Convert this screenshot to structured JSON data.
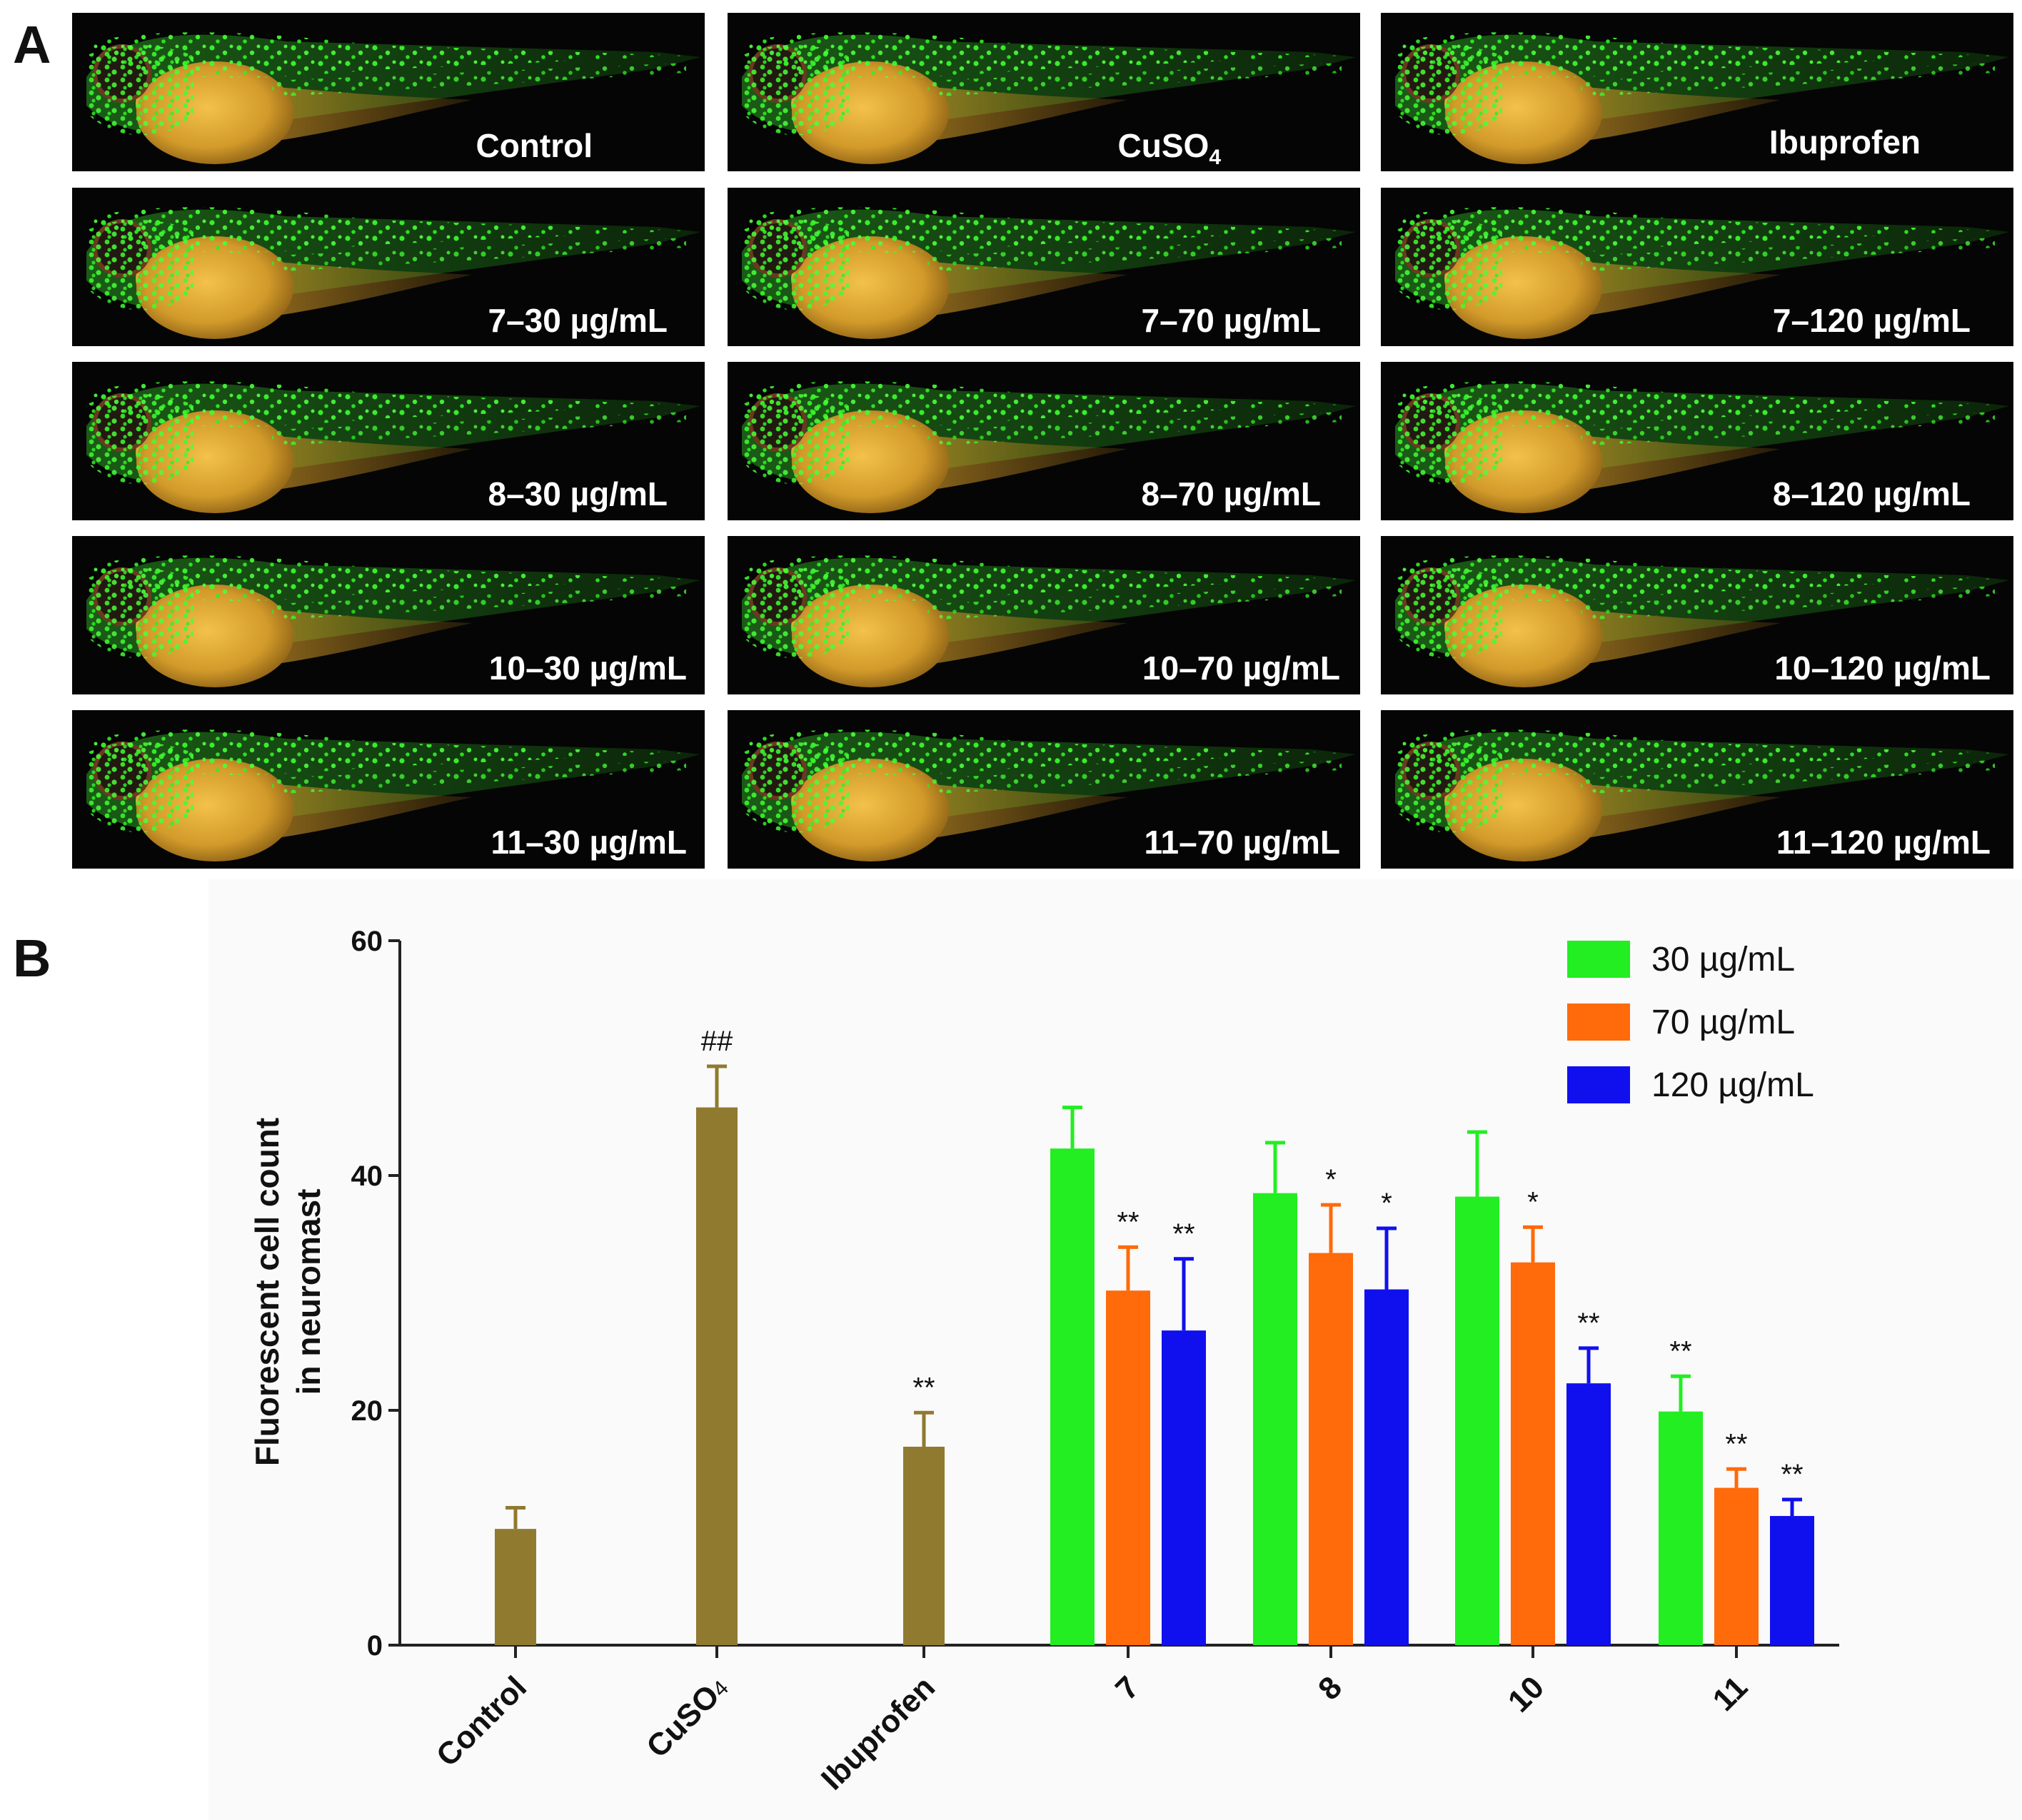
{
  "figure": {
    "panel_a_label": "A",
    "panel_b_label": "B"
  },
  "panel_a": {
    "rows": [
      [
        "Control",
        "CuSO",
        "Ibuprofen"
      ],
      [
        "7–30 µg/mL",
        "7–70 µg/mL",
        "7–120 µg/mL"
      ],
      [
        "8–30 µg/mL",
        "8–70 µg/mL",
        "8–120 µg/mL"
      ],
      [
        "10–30 µg/mL",
        "10–70 µg/mL",
        "10–120 µg/mL"
      ],
      [
        "11–30 µg/mL",
        "11–70 µg/mL",
        "11–120 µg/mL"
      ]
    ],
    "cuso4_subscript": "4"
  },
  "chart_data": {
    "type": "bar",
    "title": "",
    "ylabel_lines": [
      "Fluorescent cell count",
      "in neuromast"
    ],
    "xlabel": "",
    "ylim": [
      0,
      60
    ],
    "yticks": [
      0,
      20,
      40,
      60
    ],
    "grid": false,
    "legend_position": "top-right",
    "colors": {
      "reference": "#8f7a30",
      "30": "#22ee22",
      "70": "#ff6a0a",
      "120": "#1010ee"
    },
    "single_groups": [
      {
        "label": "Control",
        "label_sub": "",
        "value": 9.9,
        "error": 1.8,
        "annotation": ""
      },
      {
        "label": "CuSO",
        "label_sub": "4",
        "value": 45.8,
        "error": 3.5,
        "annotation": "##"
      },
      {
        "label": "Ibuprofen",
        "label_sub": "",
        "value": 16.9,
        "error": 2.9,
        "annotation": "**"
      }
    ],
    "categories": [
      "7",
      "8",
      "10",
      "11"
    ],
    "series": [
      {
        "name": "30 µg/mL",
        "key": "30",
        "values": [
          42.3,
          38.5,
          38.2,
          19.9
        ],
        "errors": [
          3.5,
          4.3,
          5.5,
          3.0
        ],
        "annotations": [
          "",
          "",
          "",
          "**"
        ]
      },
      {
        "name": "70 µg/mL",
        "key": "70",
        "values": [
          30.2,
          33.4,
          32.6,
          13.4
        ],
        "errors": [
          3.7,
          4.1,
          3.0,
          1.6
        ],
        "annotations": [
          "**",
          "*",
          "*",
          "**"
        ]
      },
      {
        "name": "120 µg/mL",
        "key": "120",
        "values": [
          26.8,
          30.3,
          22.3,
          11.0
        ],
        "errors": [
          6.1,
          5.2,
          3.0,
          1.4
        ],
        "annotations": [
          "**",
          "*",
          "**",
          "**"
        ]
      }
    ]
  }
}
